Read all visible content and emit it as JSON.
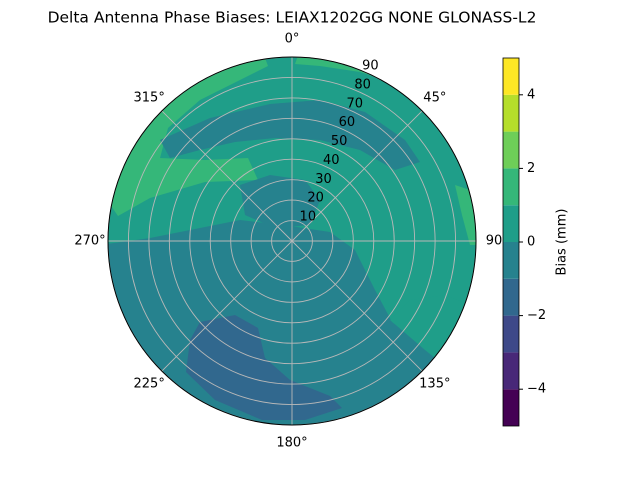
{
  "chart_data": {
    "type": "polar-contour",
    "title": "Delta Antenna Phase Biases: LEIAX1202GG     NONE GLONASS-L2",
    "thetaticks": [
      {
        "value": 0,
        "label": "0°"
      },
      {
        "value": 45,
        "label": "45°"
      },
      90,
      {
        "value": 135,
        "label": "135°"
      },
      {
        "value": 180,
        "label": "180°"
      },
      {
        "value": 225,
        "label": "225°"
      },
      {
        "value": 270,
        "label": "270°"
      },
      {
        "value": 315,
        "label": "315°"
      }
    ],
    "rlim": [
      0,
      90
    ],
    "rticks": [
      10,
      20,
      30,
      40,
      50,
      60,
      70,
      80,
      90
    ],
    "grid": true,
    "levels": [
      -5,
      -4,
      -3,
      -2,
      -1,
      0,
      1,
      2,
      3,
      4,
      5
    ],
    "colors": [
      "#440154",
      "#482878",
      "#3e4989",
      "#31688e",
      "#26828e",
      "#1f9e89",
      "#35b779",
      "#6ece58",
      "#b5de2b",
      "#fde725"
    ],
    "colorbar_label": "Bias (mm)",
    "colorbar_ticks": [
      {
        "value": -4,
        "label": "−4"
      },
      {
        "value": -2,
        "label": "−2"
      },
      0,
      2,
      4
    ]
  }
}
